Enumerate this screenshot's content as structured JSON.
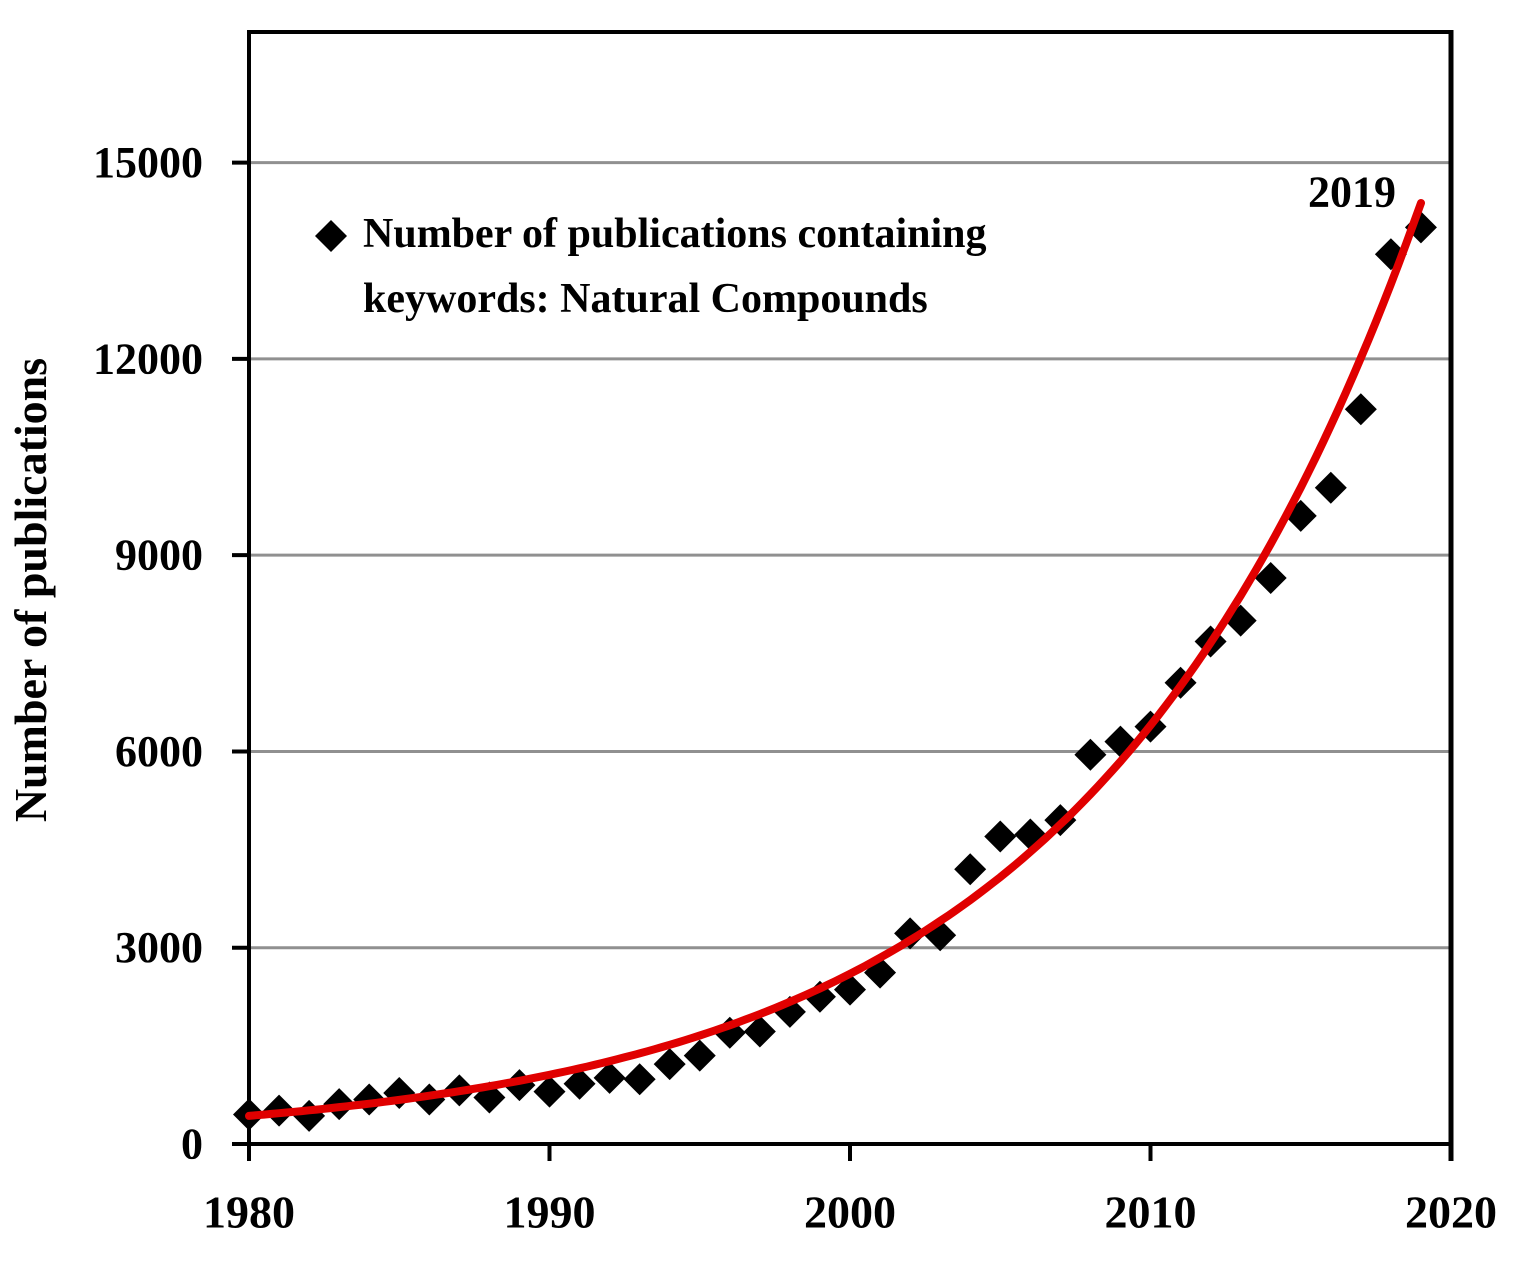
{
  "chart_data": {
    "type": "scatter",
    "title": "",
    "xlabel": "",
    "ylabel": "Number of publications",
    "legend_lines": [
      "Number of publications containing",
      "keywords: Natural Compounds"
    ],
    "legend_marker": "diamond-icon",
    "legend_position": "top-left-inside",
    "annotation": {
      "text": "2019",
      "color": "#e00000"
    },
    "grid": "horizontal",
    "xlim": [
      1980,
      2020
    ],
    "ylim": [
      0,
      17000
    ],
    "x_ticks": [
      "1980",
      "1990",
      "2000",
      "2010",
      "2020"
    ],
    "x_tick_values": [
      1980,
      1990,
      2000,
      2010,
      2020
    ],
    "y_ticks": [
      "0",
      "3000",
      "6000",
      "9000",
      "12000",
      "15000"
    ],
    "y_tick_values": [
      0,
      3000,
      6000,
      9000,
      12000,
      15000
    ],
    "series": [
      {
        "name": "Number of publications containing keywords: Natural Compounds",
        "marker": "diamond",
        "color": "#000000",
        "x": [
          1980,
          1981,
          1982,
          1983,
          1984,
          1985,
          1986,
          1987,
          1988,
          1989,
          1990,
          1991,
          1992,
          1993,
          1994,
          1995,
          1996,
          1997,
          1998,
          1999,
          2000,
          2001,
          2002,
          2003,
          2004,
          2005,
          2006,
          2007,
          2008,
          2009,
          2010,
          2011,
          2012,
          2013,
          2014,
          2015,
          2016,
          2017,
          2018,
          2019
        ],
        "y": [
          450,
          510,
          430,
          610,
          680,
          780,
          680,
          820,
          710,
          900,
          800,
          920,
          1010,
          990,
          1220,
          1350,
          1700,
          1720,
          2020,
          2250,
          2360,
          2620,
          3220,
          3190,
          4200,
          4700,
          4730,
          4950,
          5950,
          6150,
          6380,
          7050,
          7680,
          8000,
          8650,
          9600,
          10030,
          11230,
          13600,
          14010
        ]
      }
    ],
    "trendline": {
      "type": "exponential",
      "color": "#e00000",
      "a": 430,
      "b": 0.09,
      "x_start": 1980,
      "x_end": 2019.1
    }
  },
  "colors": {
    "background": "#ffffff",
    "axis": "#000000",
    "gridline": "#909090",
    "marker": "#000000",
    "trend": "#e00000"
  }
}
